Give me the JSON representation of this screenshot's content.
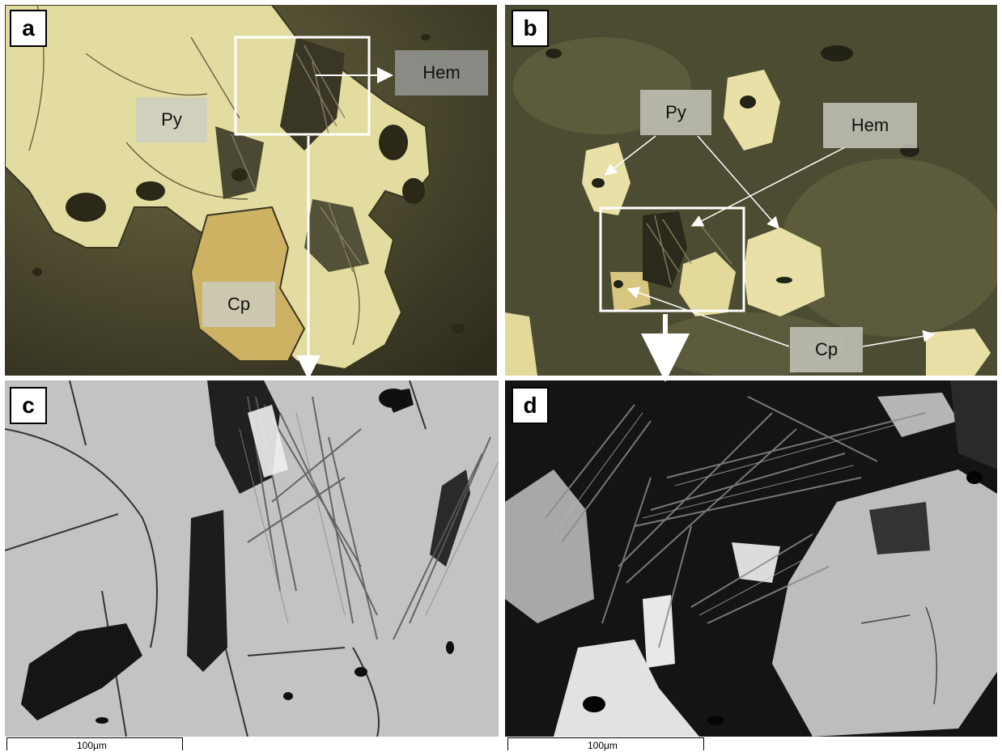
{
  "panels": {
    "a": {
      "letter": "a",
      "labels": {
        "py": "Py",
        "hem": "Hem",
        "cp": "Cp"
      }
    },
    "b": {
      "letter": "b",
      "labels": {
        "py": "Py",
        "hem": "Hem",
        "cp": "Cp"
      }
    },
    "c": {
      "letter": "c",
      "scale": "100μm"
    },
    "d": {
      "letter": "d",
      "scale": "100μm"
    }
  },
  "colors": {
    "reflected_light_matrix": "#4a4a30",
    "pyrite": "#e7dfa4",
    "chalcopyrite": "#cdb46a",
    "bse_matrix": "#c2c2c2",
    "bse_dark": "#1c1c1c"
  }
}
